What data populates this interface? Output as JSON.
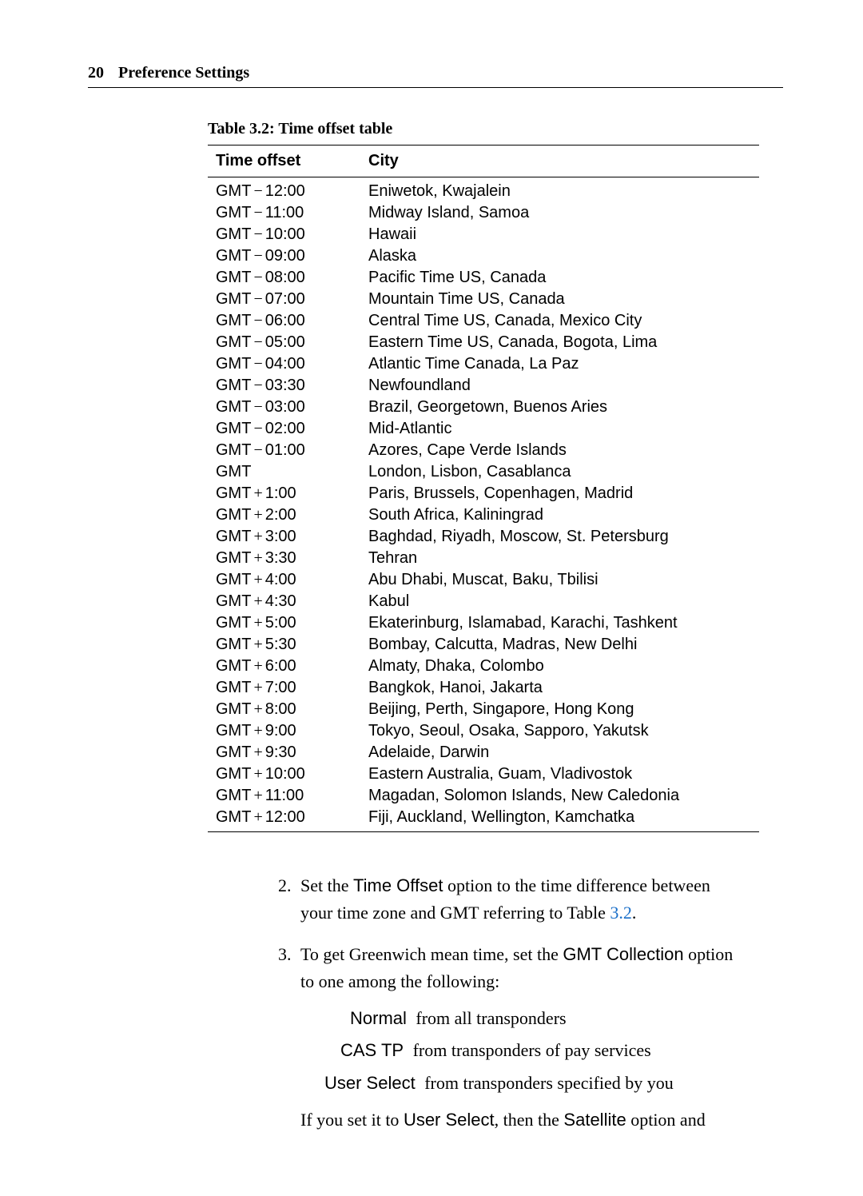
{
  "header": {
    "page_number": "20",
    "section": "Preference Settings"
  },
  "table": {
    "caption": "Table 3.2: Time offset table",
    "columns": [
      "Time offset",
      "City"
    ],
    "gmt_label": "GMT",
    "op_minus": "−",
    "op_plus": "+",
    "rows": [
      {
        "op": "minus",
        "val": "12:00",
        "city": "Eniwetok, Kwajalein"
      },
      {
        "op": "minus",
        "val": "11:00",
        "city": "Midway Island, Samoa"
      },
      {
        "op": "minus",
        "val": "10:00",
        "city": "Hawaii"
      },
      {
        "op": "minus",
        "val": "09:00",
        "city": "Alaska"
      },
      {
        "op": "minus",
        "val": "08:00",
        "city": "Pacific Time US, Canada"
      },
      {
        "op": "minus",
        "val": "07:00",
        "city": "Mountain Time US, Canada"
      },
      {
        "op": "minus",
        "val": "06:00",
        "city": "Central Time US, Canada, Mexico City"
      },
      {
        "op": "minus",
        "val": "05:00",
        "city": "Eastern Time US, Canada, Bogota, Lima"
      },
      {
        "op": "minus",
        "val": "04:00",
        "city": "Atlantic Time Canada, La Paz"
      },
      {
        "op": "minus",
        "val": "03:30",
        "city": "Newfoundland"
      },
      {
        "op": "minus",
        "val": "03:00",
        "city": "Brazil, Georgetown, Buenos Aries"
      },
      {
        "op": "minus",
        "val": "02:00",
        "city": "Mid-Atlantic"
      },
      {
        "op": "minus",
        "val": "01:00",
        "city": "Azores, Cape Verde Islands"
      },
      {
        "op": "none",
        "val": "",
        "city": "London, Lisbon, Casablanca"
      },
      {
        "op": "plus",
        "val": "1:00",
        "city": "Paris, Brussels, Copenhagen, Madrid"
      },
      {
        "op": "plus",
        "val": "2:00",
        "city": "South Africa, Kaliningrad"
      },
      {
        "op": "plus",
        "val": "3:00",
        "city": "Baghdad, Riyadh, Moscow, St. Petersburg"
      },
      {
        "op": "plus",
        "val": "3:30",
        "city": "Tehran"
      },
      {
        "op": "plus",
        "val": "4:00",
        "city": "Abu Dhabi, Muscat, Baku, Tbilisi"
      },
      {
        "op": "plus",
        "val": "4:30",
        "city": "Kabul"
      },
      {
        "op": "plus",
        "val": "5:00",
        "city": "Ekaterinburg, Islamabad, Karachi, Tashkent"
      },
      {
        "op": "plus",
        "val": "5:30",
        "city": "Bombay, Calcutta, Madras, New Delhi"
      },
      {
        "op": "plus",
        "val": "6:00",
        "city": "Almaty, Dhaka, Colombo"
      },
      {
        "op": "plus",
        "val": "7:00",
        "city": "Bangkok, Hanoi, Jakarta"
      },
      {
        "op": "plus",
        "val": "8:00",
        "city": "Beijing, Perth, Singapore, Hong Kong"
      },
      {
        "op": "plus",
        "val": "9:00",
        "city": "Tokyo, Seoul, Osaka, Sapporo, Yakutsk"
      },
      {
        "op": "plus",
        "val": "9:30",
        "city": "Adelaide, Darwin"
      },
      {
        "op": "plus",
        "val": "10:00",
        "city": "Eastern Australia, Guam, Vladivostok"
      },
      {
        "op": "plus",
        "val": "11:00",
        "city": "Magadan, Solomon Islands, New Caledonia"
      },
      {
        "op": "plus",
        "val": "12:00",
        "city": "Fiji, Auckland, Wellington, Kamchatka"
      }
    ]
  },
  "body": {
    "start_index": 2,
    "item2_a": "Set the ",
    "item2_term1": "Time Offset",
    "item2_b": " option to the time difference between your time zone and GMT referring to Table ",
    "item2_ref": "3.2",
    "item2_c": ".",
    "item3_a": "To get Greenwich mean time, set the ",
    "item3_term1": "GMT Collection",
    "item3_b": " option to one among the following:",
    "opts": [
      {
        "term": "Normal",
        "desc": "from all transponders"
      },
      {
        "term": "CAS TP",
        "desc": "from transponders of pay services"
      },
      {
        "term": "User Select",
        "desc": "from transponders specified by you"
      }
    ],
    "item3_tail_a": "If you set it to ",
    "item3_tail_term1": "User Select",
    "item3_tail_b": ", then the ",
    "item3_tail_term2": "Satellite",
    "item3_tail_c": " option and"
  }
}
